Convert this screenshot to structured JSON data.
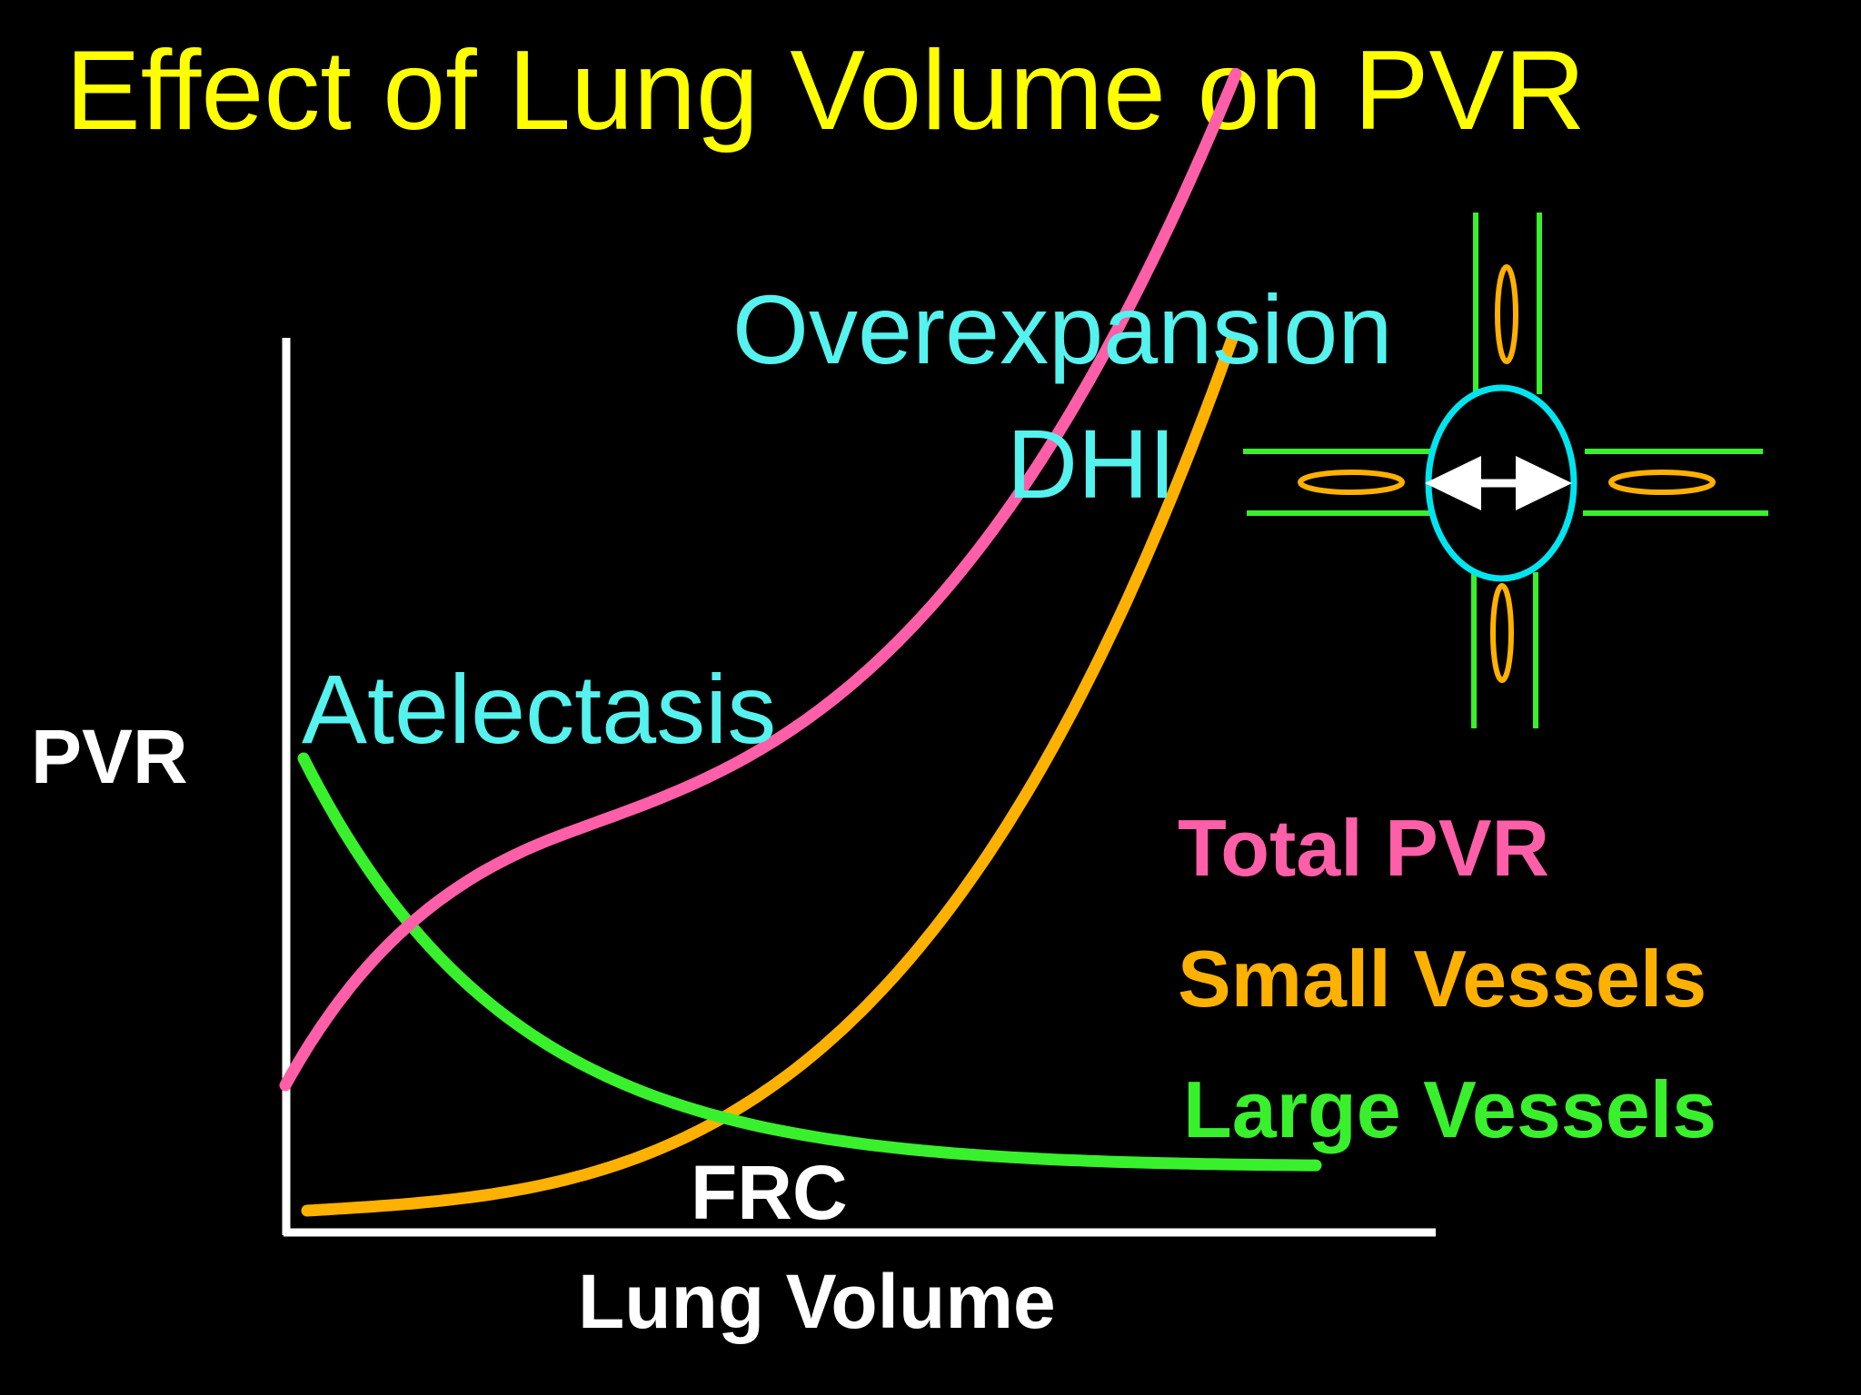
{
  "title": "Effect of Lung Volume on PVR",
  "chart_data": {
    "type": "line",
    "xlabel": "Lung Volume",
    "ylabel": "PVR",
    "x_tick_label": "FRC",
    "x_axis_values_shown": false,
    "y_axis_values_shown": false,
    "grid": false,
    "legend_position": "right",
    "annotations": [
      {
        "name": "annotation-atelectasis",
        "text": "Atelectasis",
        "color": "#55F2EE"
      },
      {
        "name": "annotation-overexpansion",
        "text": "Overexpansion",
        "color": "#55F2EE"
      },
      {
        "name": "annotation-dhi",
        "text": "DHI",
        "color": "#55F2EE"
      }
    ],
    "series": [
      {
        "name": "Total PVR",
        "color": "#FF5FA8"
      },
      {
        "name": "Small Vessels",
        "color": "#FFB100"
      },
      {
        "name": "Large Vessels",
        "color": "#39F02C"
      }
    ]
  },
  "colors": {
    "background": "#000000",
    "title": "#FFFF00",
    "axis": "#FFFFFF",
    "vessel_wall": "#39F02C",
    "vessel_lumen": "#FFB100",
    "alveolus": "#00E5F0",
    "expansion_arrow": "#FFFFFF"
  },
  "diagram": {
    "icon": "alveolar-vessel-diagram-icon"
  }
}
